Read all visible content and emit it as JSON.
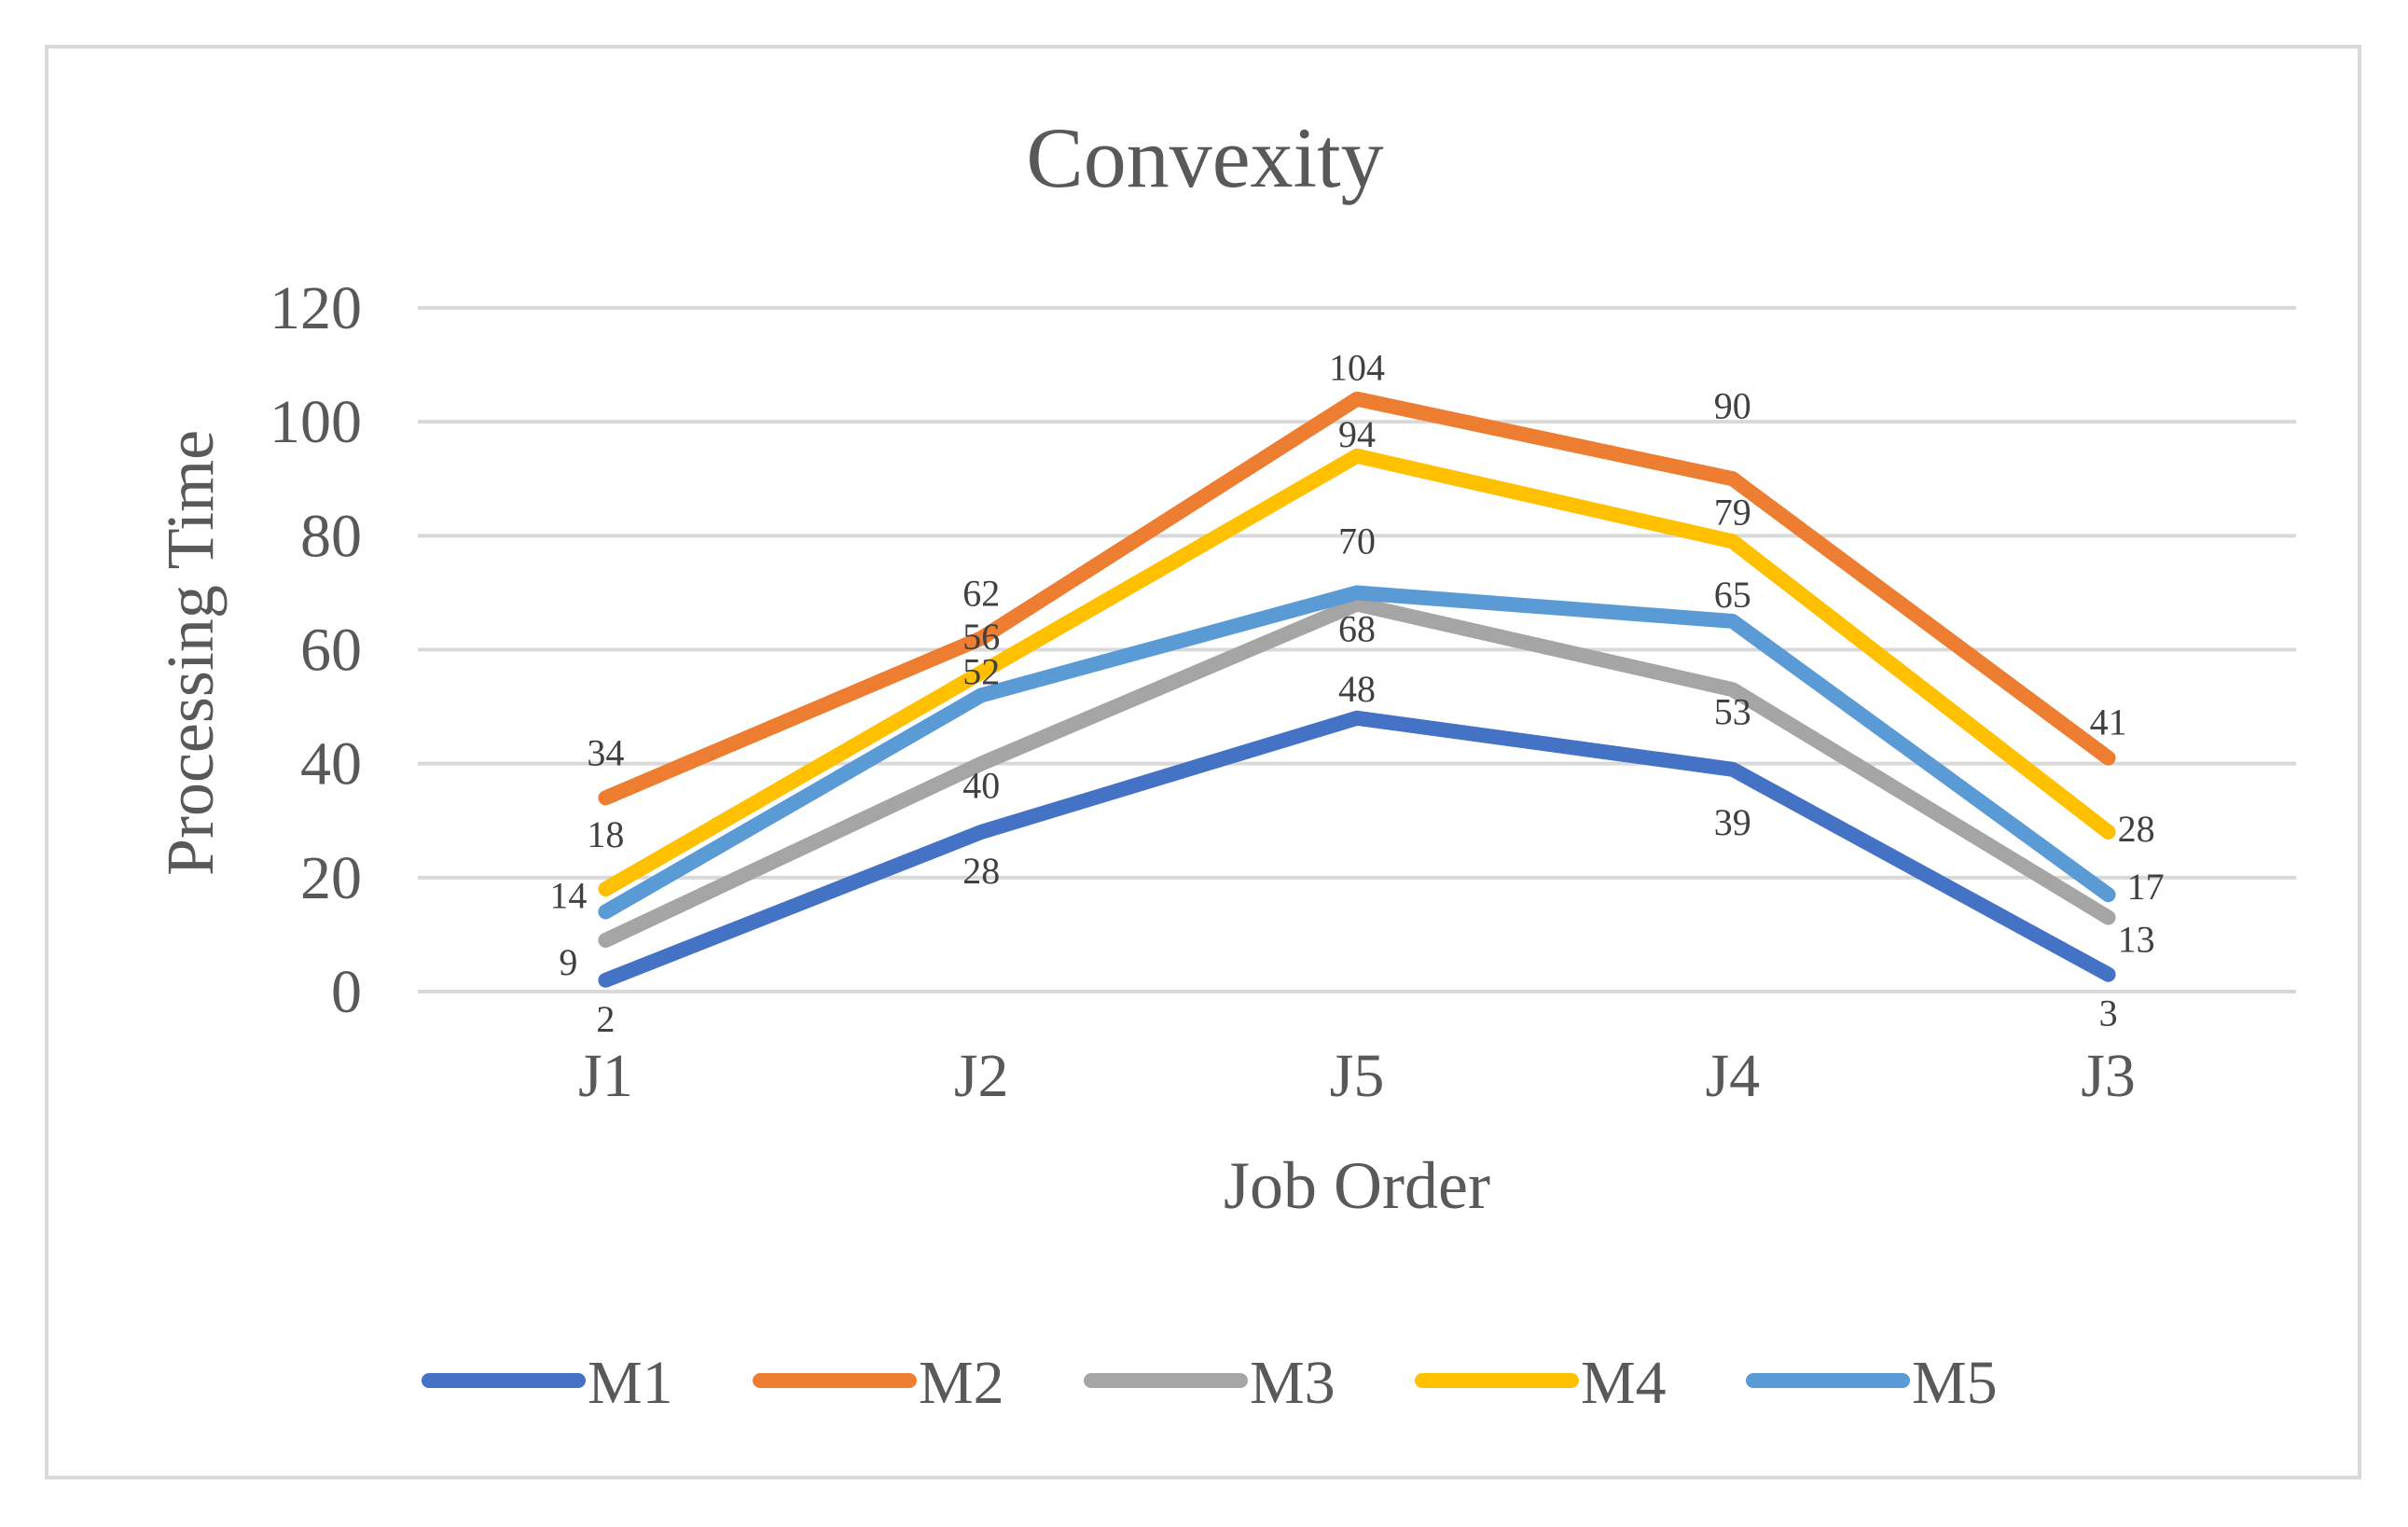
{
  "chart_data": {
    "type": "line",
    "title": "Convexity",
    "xlabel": "Job Order",
    "ylabel": "Processing Time",
    "ylim": [
      0,
      120
    ],
    "yticks": [
      0,
      20,
      40,
      60,
      80,
      100,
      120
    ],
    "categories": [
      "J1",
      "J2",
      "J5",
      "J4",
      "J3"
    ],
    "series": [
      {
        "name": "M1",
        "color": "#4472c4",
        "values": [
          2,
          28,
          48,
          39,
          3
        ]
      },
      {
        "name": "M2",
        "color": "#ed7d31",
        "values": [
          34,
          62,
          104,
          90,
          41
        ]
      },
      {
        "name": "M3",
        "color": "#a5a5a5",
        "values": [
          9,
          40,
          68,
          53,
          13
        ]
      },
      {
        "name": "M4",
        "color": "#ffc000",
        "values": [
          18,
          56,
          94,
          79,
          28
        ]
      },
      {
        "name": "M5",
        "color": "#5b9bd5",
        "values": [
          14,
          52,
          70,
          65,
          17
        ]
      }
    ],
    "grid": true,
    "legend": "bottom"
  }
}
